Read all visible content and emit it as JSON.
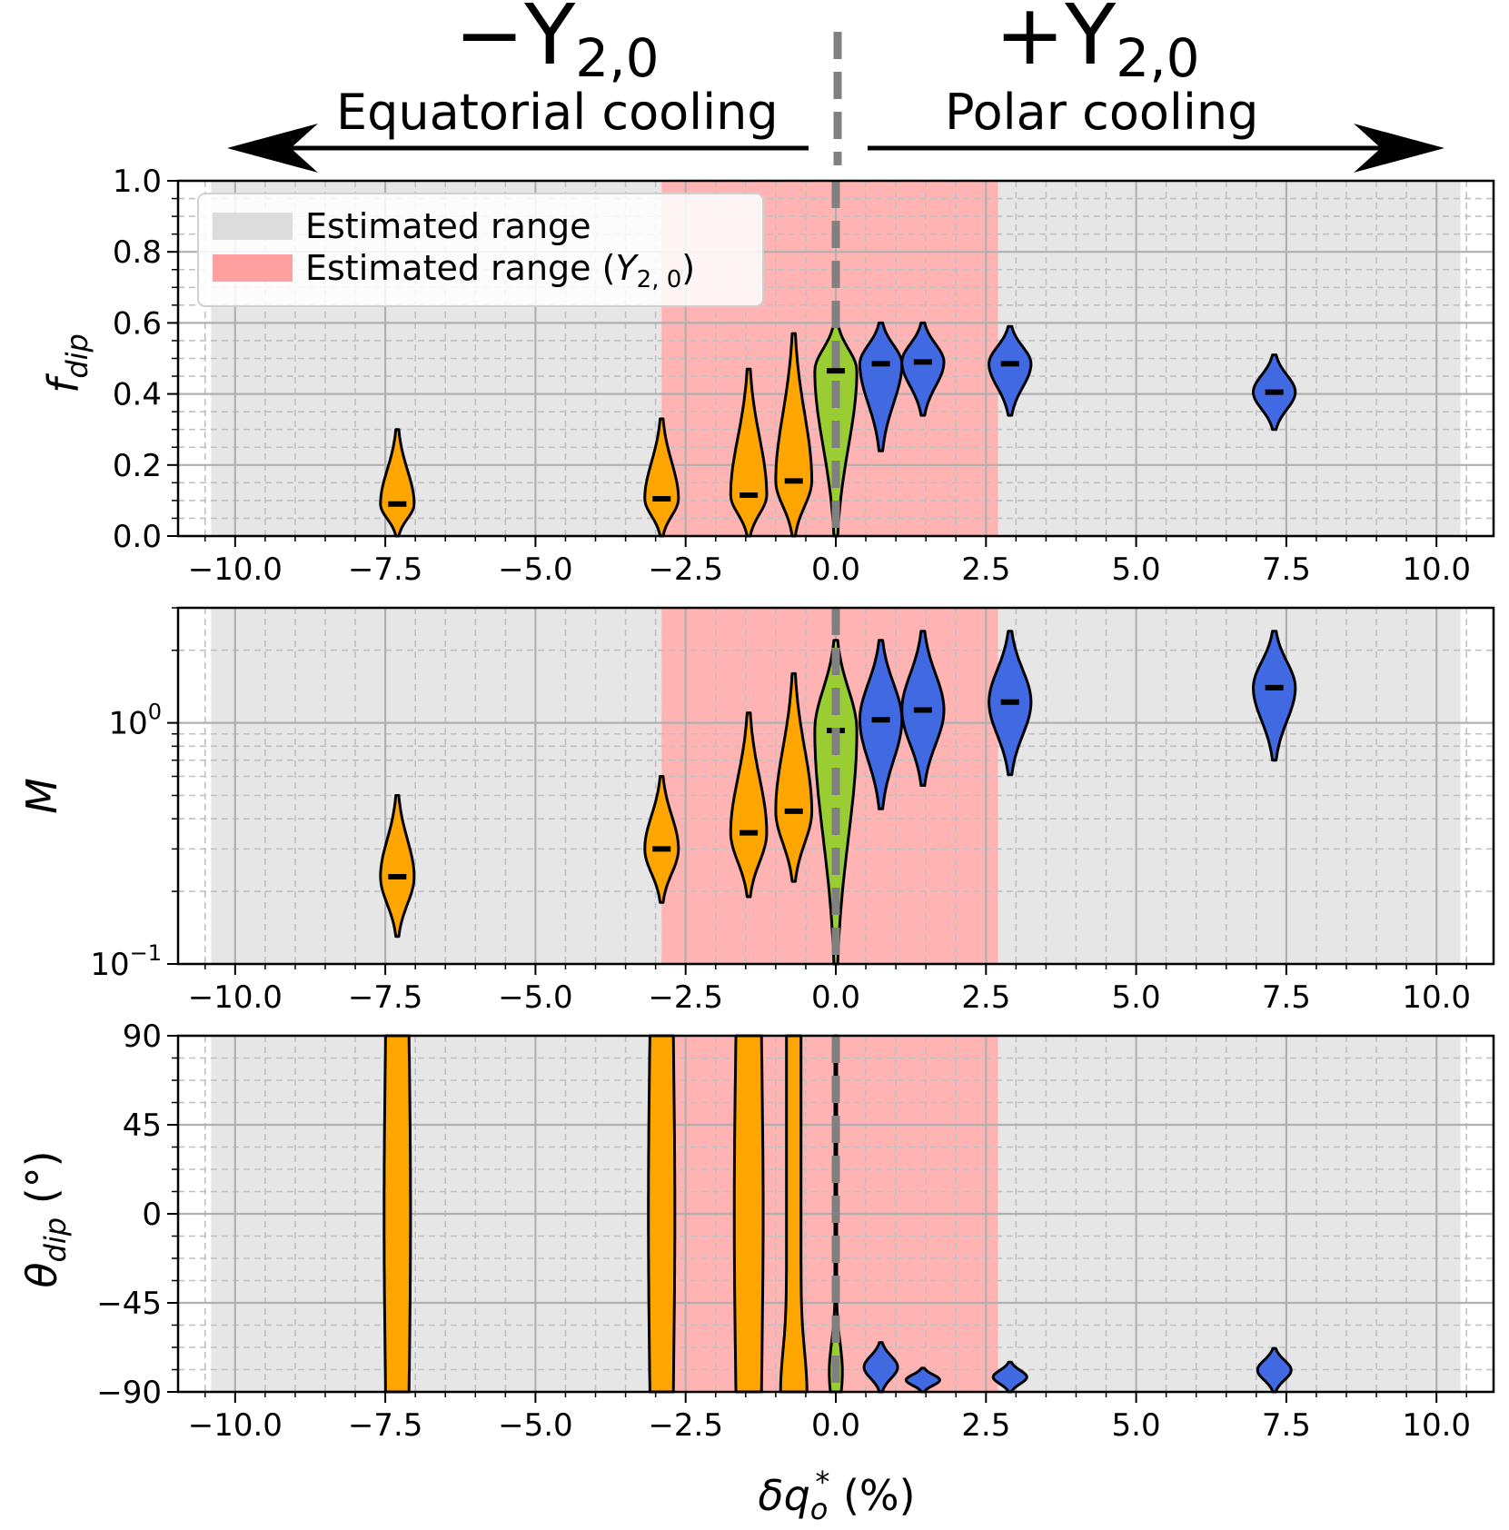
{
  "chart_data": {
    "type": "violin",
    "header": {
      "left": {
        "sign": "−",
        "symbol": "Y",
        "sub": "2,0",
        "caption": "Equatorial cooling"
      },
      "right": {
        "sign": "+",
        "symbol": "Y",
        "sub": "2,0",
        "caption": "Polar cooling"
      }
    },
    "xlabel": {
      "main": "δq",
      "sub": "o",
      "sup": "*",
      "unit": " (%)"
    },
    "x_positions": [
      -7.3,
      -2.9,
      -1.45,
      -0.7,
      0.0,
      0.75,
      1.45,
      2.9,
      7.3
    ],
    "series_colors": [
      "#FFA500",
      "#FFA500",
      "#FFA500",
      "#FFA500",
      "#9ACD32",
      "#4169E1",
      "#4169E1",
      "#4169E1",
      "#4169E1"
    ],
    "gray_band": [
      -10.4,
      10.4
    ],
    "red_band": [
      -2.9,
      2.7
    ],
    "zero_line": 0.0,
    "xlim": [
      -10.95,
      10.95
    ],
    "xticks": [
      -10.0,
      -7.5,
      -5.0,
      -2.5,
      0.0,
      2.5,
      5.0,
      7.5,
      10.0
    ],
    "xtick_labels": [
      "−10.0",
      "−7.5",
      "−5.0",
      "−2.5",
      "0.0",
      "2.5",
      "5.0",
      "7.5",
      "10.0"
    ],
    "legend": {
      "items": [
        {
          "label": "Estimated range",
          "color": "#dcdcdc"
        },
        {
          "label": "Estimated range (",
          "math": "Y",
          "sub": "2, 0",
          "close": ")",
          "color": "#ffa0a0"
        }
      ]
    },
    "panels": [
      {
        "name": "fdip",
        "ylabel": {
          "main": "f",
          "sub": "dip"
        },
        "scale": "linear",
        "ylim": [
          0,
          1
        ],
        "yticks": [
          0,
          0.2,
          0.4,
          0.6,
          0.8,
          1.0
        ],
        "ytick_labels": [
          "0.0",
          "0.2",
          "0.4",
          "0.6",
          "0.8",
          "1.0"
        ],
        "medians": [
          0.09,
          0.105,
          0.115,
          0.155,
          0.465,
          0.485,
          0.49,
          0.485,
          0.405
        ],
        "ranges": [
          [
            0.0,
            0.3
          ],
          [
            0.0,
            0.33
          ],
          [
            0.0,
            0.47
          ],
          [
            0.0,
            0.57
          ],
          [
            0.0,
            0.6
          ],
          [
            0.24,
            0.6
          ],
          [
            0.34,
            0.6
          ],
          [
            0.34,
            0.59
          ],
          [
            0.3,
            0.51
          ]
        ],
        "half_widths": [
          0.28,
          0.28,
          0.3,
          0.3,
          0.35,
          0.35,
          0.35,
          0.35,
          0.35
        ]
      },
      {
        "name": "M",
        "ylabel": {
          "main": "M",
          "sub": ""
        },
        "scale": "log",
        "ylim": [
          0.1,
          3
        ],
        "yticks": [
          0.1,
          1.0
        ],
        "ytick_labels": [
          {
            "base": "10",
            "exp": "−1"
          },
          {
            "base": "10",
            "exp": "0"
          }
        ],
        "medians": [
          0.23,
          0.3,
          0.35,
          0.43,
          0.93,
          1.03,
          1.13,
          1.22,
          1.4
        ],
        "ranges": [
          [
            0.13,
            0.5
          ],
          [
            0.18,
            0.6
          ],
          [
            0.19,
            1.1
          ],
          [
            0.22,
            1.6
          ],
          [
            0.1,
            2.2
          ],
          [
            0.44,
            2.2
          ],
          [
            0.55,
            2.4
          ],
          [
            0.61,
            2.4
          ],
          [
            0.7,
            2.4
          ]
        ],
        "half_widths": [
          0.28,
          0.28,
          0.3,
          0.3,
          0.35,
          0.35,
          0.35,
          0.35,
          0.35
        ]
      },
      {
        "name": "theta",
        "ylabel": {
          "main": "θ",
          "sub": "dip",
          "unit": " (°)"
        },
        "scale": "linear",
        "ylim": [
          -90,
          90
        ],
        "yticks": [
          -90,
          -45,
          0,
          45,
          90
        ],
        "ytick_labels": [
          "−90",
          "−45",
          "0",
          "45",
          "90"
        ],
        "medians": [],
        "ranges": [
          [
            -90,
            90
          ],
          [
            -90,
            90
          ],
          [
            -90,
            90
          ],
          [
            -90,
            90
          ],
          [
            -90,
            90
          ],
          [
            -90,
            -65
          ],
          [
            -90,
            -78
          ],
          [
            -90,
            -75
          ],
          [
            -90,
            -68
          ]
        ],
        "half_widths": [
          0.22,
          0.22,
          0.24,
          0.22,
          0.1,
          0.28,
          0.28,
          0.28,
          0.28
        ]
      }
    ]
  }
}
